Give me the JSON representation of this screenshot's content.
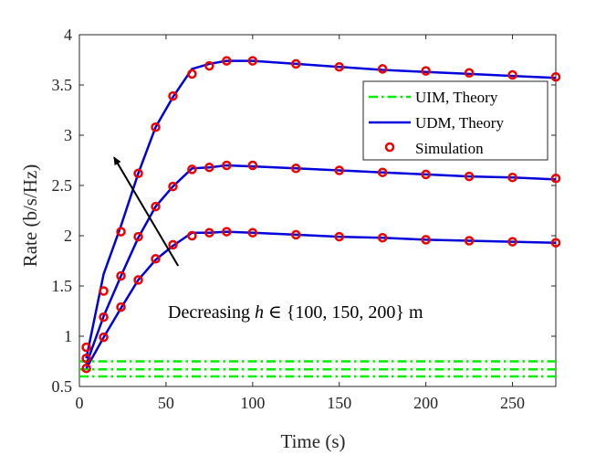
{
  "chart_data": {
    "type": "line",
    "xlabel": "Time (s)",
    "ylabel": "Rate (b/s/Hz)",
    "xlim": [
      0,
      275
    ],
    "ylim": [
      0.5,
      4
    ],
    "xticks": [
      0,
      50,
      100,
      150,
      200,
      250
    ],
    "yticks": [
      0.5,
      1,
      1.5,
      2,
      2.5,
      3,
      3.5,
      4
    ],
    "xtick_labels": [
      "0",
      "50",
      "100",
      "150",
      "200",
      "250"
    ],
    "ytick_labels": [
      "0.5",
      "1",
      "1.5",
      "2",
      "2.5",
      "3",
      "3.5",
      "4"
    ],
    "grid": false,
    "legend_position": "right-upper",
    "legend": [
      {
        "label": "UIM, Theory",
        "color": "#00ee00",
        "style": "dash-dot"
      },
      {
        "label": "UDM, Theory",
        "color": "#0000dd",
        "style": "solid"
      },
      {
        "label": "Simulation",
        "color": "#ee0000",
        "style": "circle-marker"
      }
    ],
    "series": [
      {
        "name": "UIM, Theory (h=100 m)",
        "style": "uim",
        "x": [
          0,
          275
        ],
        "y": [
          0.75,
          0.75
        ]
      },
      {
        "name": "UIM, Theory (h=150 m)",
        "style": "uim",
        "x": [
          0,
          275
        ],
        "y": [
          0.67,
          0.67
        ]
      },
      {
        "name": "UIM, Theory (h=200 m)",
        "style": "uim",
        "x": [
          0,
          275
        ],
        "y": [
          0.6,
          0.6
        ]
      },
      {
        "name": "UDM, Theory (h=100 m)",
        "style": "udm",
        "x": [
          4,
          14,
          24,
          34,
          44,
          54,
          65,
          75,
          85,
          100,
          125,
          150,
          175,
          200,
          225,
          250,
          275
        ],
        "y": [
          0.78,
          1.62,
          2.1,
          2.62,
          3.08,
          3.38,
          3.66,
          3.71,
          3.74,
          3.74,
          3.71,
          3.68,
          3.65,
          3.63,
          3.61,
          3.59,
          3.57
        ]
      },
      {
        "name": "UDM, Theory (h=150 m)",
        "style": "udm",
        "x": [
          4,
          14,
          24,
          34,
          44,
          54,
          65,
          75,
          85,
          100,
          125,
          150,
          175,
          200,
          225,
          250,
          275
        ],
        "y": [
          0.72,
          1.2,
          1.6,
          1.98,
          2.29,
          2.49,
          2.67,
          2.68,
          2.7,
          2.69,
          2.67,
          2.65,
          2.63,
          2.61,
          2.59,
          2.58,
          2.56
        ]
      },
      {
        "name": "UDM, Theory (h=200 m)",
        "style": "udm",
        "x": [
          4,
          14,
          24,
          34,
          44,
          54,
          65,
          75,
          85,
          100,
          125,
          150,
          175,
          200,
          225,
          250,
          275
        ],
        "y": [
          0.68,
          0.99,
          1.28,
          1.56,
          1.76,
          1.9,
          2.03,
          2.03,
          2.04,
          2.03,
          2.01,
          1.99,
          1.98,
          1.96,
          1.95,
          1.94,
          1.93
        ]
      },
      {
        "name": "Simulation (h=100 m)",
        "style": "sim",
        "x": [
          4,
          14,
          24,
          34,
          44,
          54,
          65,
          75,
          85,
          100,
          125,
          150,
          175,
          200,
          225,
          250,
          275
        ],
        "y": [
          0.89,
          1.45,
          2.04,
          2.62,
          3.08,
          3.39,
          3.61,
          3.69,
          3.74,
          3.74,
          3.71,
          3.68,
          3.66,
          3.64,
          3.62,
          3.6,
          3.58
        ]
      },
      {
        "name": "Simulation (h=150 m)",
        "style": "sim",
        "x": [
          4,
          14,
          24,
          34,
          44,
          54,
          65,
          75,
          85,
          100,
          125,
          150,
          175,
          200,
          225,
          250,
          275
        ],
        "y": [
          0.78,
          1.19,
          1.6,
          1.99,
          2.29,
          2.49,
          2.66,
          2.68,
          2.7,
          2.7,
          2.67,
          2.65,
          2.63,
          2.61,
          2.59,
          2.58,
          2.57
        ]
      },
      {
        "name": "Simulation (h=200 m)",
        "style": "sim",
        "x": [
          4,
          14,
          24,
          34,
          44,
          54,
          65,
          75,
          85,
          100,
          125,
          150,
          175,
          200,
          225,
          250,
          275
        ],
        "y": [
          0.68,
          0.99,
          1.29,
          1.56,
          1.77,
          1.91,
          2.0,
          2.03,
          2.04,
          2.03,
          2.01,
          1.99,
          1.98,
          1.96,
          1.95,
          1.94,
          1.93
        ]
      }
    ],
    "annotation": {
      "text": "Decreasing h ∈ {100, 150, 200} m",
      "prefix": "Decreasing ",
      "variable": "h",
      "set": " ∈ {100, 150, 200} ",
      "unit": "m",
      "arrow_from": [
        57,
        1.7
      ],
      "arrow_to": [
        20,
        2.78
      ]
    }
  }
}
